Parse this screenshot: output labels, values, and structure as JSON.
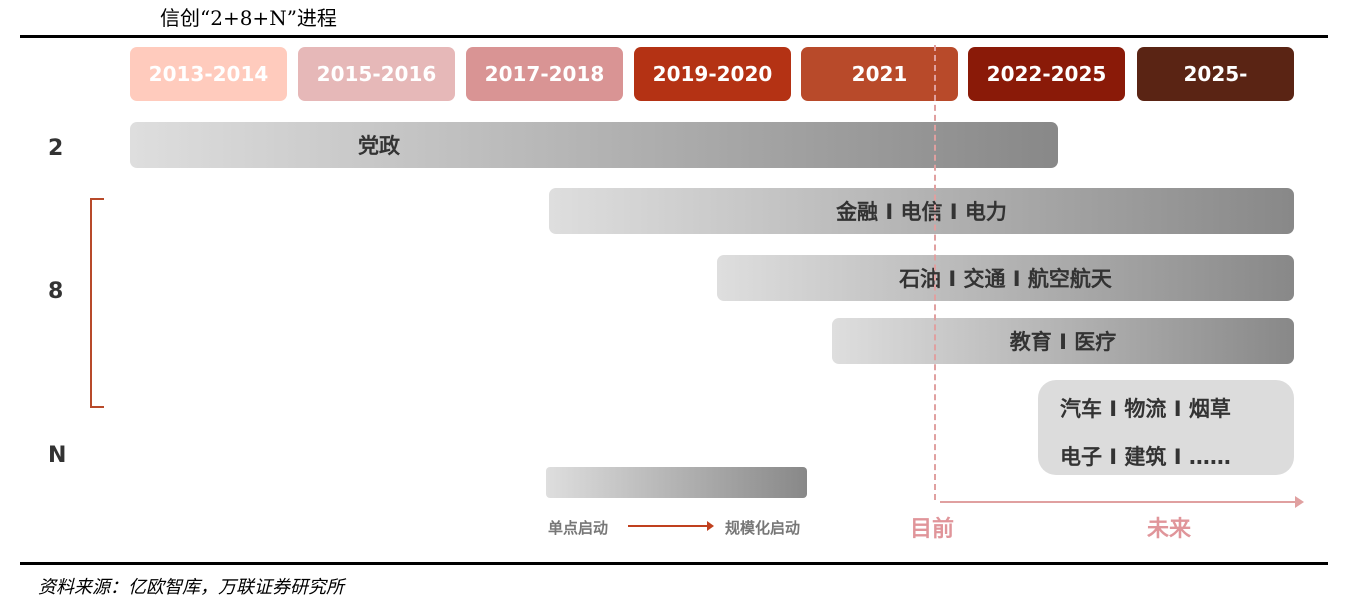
{
  "title": "信创“2+8+N”进程",
  "periods": [
    {
      "label": "2013-2014",
      "color": "#ffcbbd"
    },
    {
      "label": "2015-2016",
      "color": "#e6b8b8"
    },
    {
      "label": "2017-2018",
      "color": "#d99494"
    },
    {
      "label": "2019-2020",
      "color": "#b43214"
    },
    {
      "label": "2021",
      "color": "#b84a2a"
    },
    {
      "label": "2022-2025",
      "color": "#8a1a08"
    },
    {
      "label": "2025-",
      "color": "#5a2414"
    }
  ],
  "row_labels": {
    "two": "2",
    "eight": "8",
    "n": "N"
  },
  "bars": [
    {
      "label": "党政",
      "start_period": "2013-2014",
      "end": "2022-2025"
    },
    {
      "label": "金融 I 电信 I 电力",
      "start_period": "2017-2018",
      "end": "2025-"
    },
    {
      "label": "石油 I 交通 I 航空航天",
      "start_period": "2019-2020",
      "end": "2025-"
    },
    {
      "label": "教育 I 医疗",
      "start_period": "2021",
      "end": "2025-"
    }
  ],
  "n_sectors": {
    "line1": "汽车 I 物流 I 烟草",
    "line2": "电子 I 建筑 I  ……"
  },
  "timeline": {
    "now": "目前",
    "future": "未来",
    "line_color": "#e0a0a0"
  },
  "legend": {
    "start": "单点启动",
    "end": "规模化启动"
  },
  "source": "资料来源：亿欧智库，万联证券研究所"
}
